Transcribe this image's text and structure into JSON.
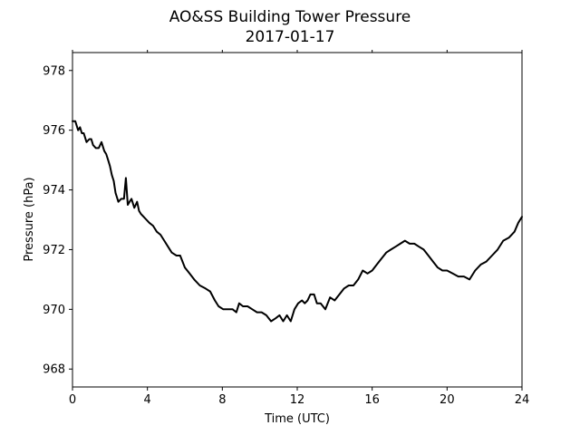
{
  "chart_data": {
    "type": "line",
    "title": "AO&SS Building Tower Pressure",
    "subtitle": "2017-01-17",
    "xlabel": "Time (UTC)",
    "ylabel": "Pressure (hPa)",
    "xlim": [
      0,
      24
    ],
    "ylim": [
      967.4,
      978.6
    ],
    "x_ticks": [
      0,
      4,
      8,
      12,
      16,
      20,
      24
    ],
    "y_ticks": [
      968,
      970,
      972,
      974,
      976,
      978
    ],
    "grid": false,
    "line_color": "#000000",
    "series": [
      {
        "x": [
          0,
          0.15,
          0.3,
          0.4,
          0.5,
          0.6,
          0.75,
          0.9,
          1.0,
          1.1,
          1.25,
          1.4,
          1.55,
          1.7,
          1.8,
          1.9,
          2.0,
          2.1,
          2.2,
          2.3,
          2.45,
          2.6,
          2.75,
          2.85,
          2.95,
          3.05,
          3.15,
          3.3,
          3.45,
          3.55,
          3.65,
          3.8,
          3.95,
          4.1,
          4.3,
          4.5,
          4.7,
          4.9,
          5.1,
          5.3,
          5.55,
          5.75,
          6.0,
          6.25,
          6.5,
          6.8,
          7.1,
          7.35,
          7.6,
          7.8,
          8.05,
          8.3,
          8.55,
          8.75,
          8.9,
          9.1,
          9.35,
          9.6,
          9.85,
          10.1,
          10.35,
          10.6,
          10.85,
          11.05,
          11.25,
          11.45,
          11.65,
          11.85,
          12.05,
          12.25,
          12.4,
          12.55,
          12.7,
          12.9,
          13.05,
          13.25,
          13.5,
          13.75,
          14.0,
          14.25,
          14.5,
          14.75,
          15.0,
          15.25,
          15.5,
          15.75,
          16.0,
          16.25,
          16.5,
          16.75,
          17.0,
          17.25,
          17.5,
          17.75,
          18.0,
          18.25,
          18.5,
          18.75,
          19.0,
          19.25,
          19.5,
          19.75,
          20.0,
          20.3,
          20.6,
          20.9,
          21.2,
          21.5,
          21.8,
          22.1,
          22.4,
          22.7,
          23.0,
          23.3,
          23.6,
          23.8,
          24.0
        ],
        "values": [
          976.3,
          976.3,
          976.0,
          976.1,
          975.9,
          975.9,
          975.6,
          975.7,
          975.7,
          975.5,
          975.4,
          975.4,
          975.6,
          975.3,
          975.2,
          975.0,
          974.8,
          974.5,
          974.3,
          973.9,
          973.6,
          973.7,
          973.7,
          974.4,
          973.5,
          973.6,
          973.7,
          973.4,
          973.6,
          973.3,
          973.2,
          973.1,
          973.0,
          972.9,
          972.8,
          972.6,
          972.5,
          972.3,
          972.1,
          971.9,
          971.8,
          971.8,
          971.4,
          971.2,
          971.0,
          970.8,
          970.7,
          970.6,
          970.3,
          970.1,
          970.0,
          970.0,
          970.0,
          969.9,
          970.2,
          970.1,
          970.1,
          970.0,
          969.9,
          969.9,
          969.8,
          969.6,
          969.7,
          969.8,
          969.6,
          969.8,
          969.6,
          970.0,
          970.2,
          970.3,
          970.2,
          970.3,
          970.5,
          970.5,
          970.2,
          970.2,
          970.0,
          970.4,
          970.3,
          970.5,
          970.7,
          970.8,
          970.8,
          971.0,
          971.3,
          971.2,
          971.3,
          971.5,
          971.7,
          971.9,
          972.0,
          972.1,
          972.2,
          972.3,
          972.2,
          972.2,
          972.1,
          972.0,
          971.8,
          971.6,
          971.4,
          971.3,
          971.3,
          971.2,
          971.1,
          971.1,
          971.0,
          971.3,
          971.5,
          971.6,
          971.8,
          972.0,
          972.3,
          972.4,
          972.6,
          972.9,
          973.1
        ]
      }
    ]
  }
}
